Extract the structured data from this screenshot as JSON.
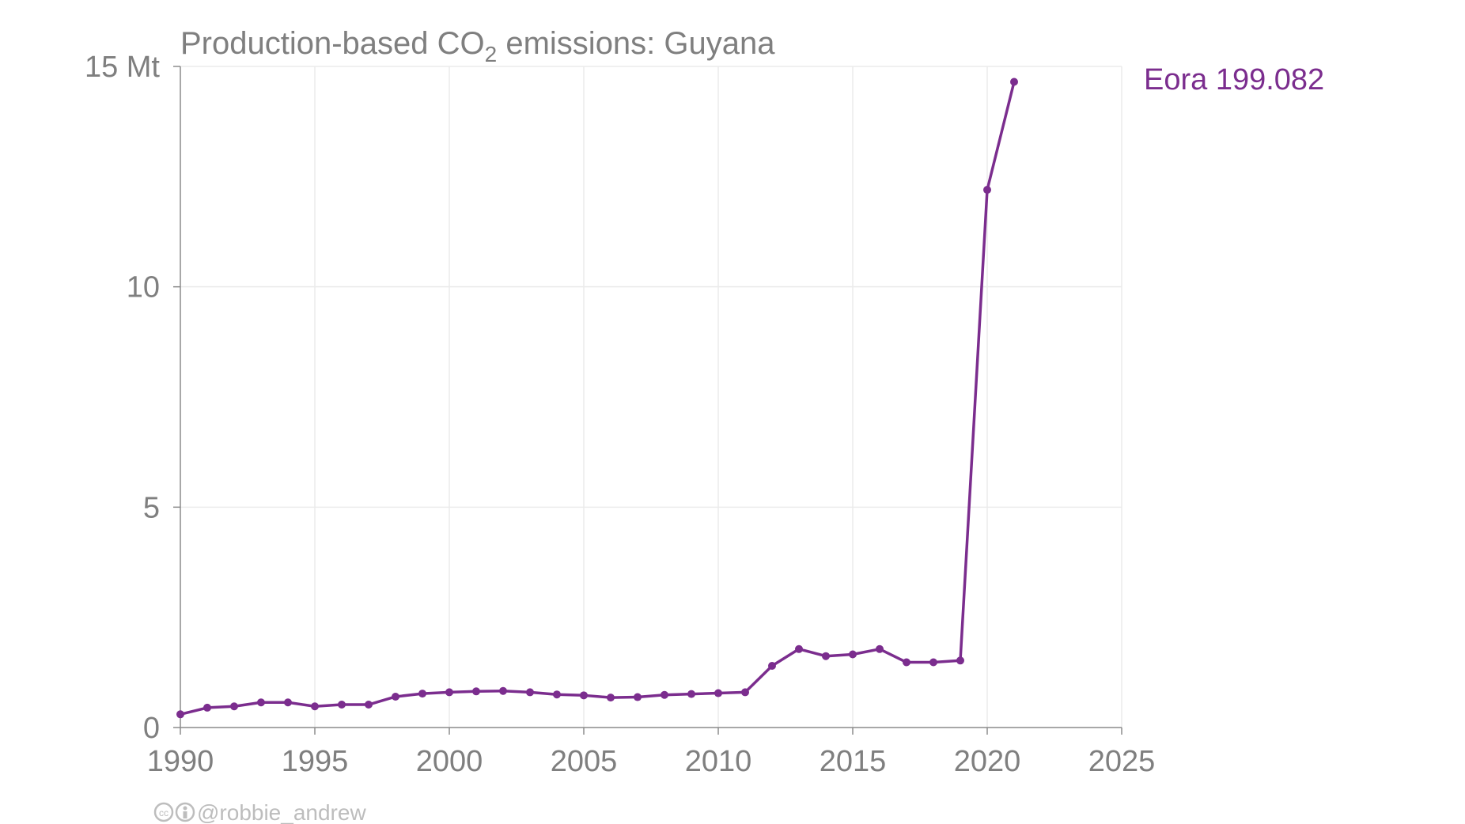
{
  "chart_data": {
    "type": "line",
    "title_main": "Production-based CO",
    "title_sub": "2",
    "title_rest": " emissions: Guyana",
    "y_unit_label": "15 Mt",
    "ylim": [
      0,
      15
    ],
    "xlim": [
      1990,
      2025
    ],
    "y_ticks": [
      0,
      5,
      10,
      15
    ],
    "x_ticks": [
      1990,
      1995,
      2000,
      2005,
      2010,
      2015,
      2020,
      2025
    ],
    "grid": true,
    "series": [
      {
        "name": "Eora 199.082",
        "color": "#7b2d8e",
        "x": [
          1990,
          1991,
          1992,
          1993,
          1994,
          1995,
          1996,
          1997,
          1998,
          1999,
          2000,
          2001,
          2002,
          2003,
          2004,
          2005,
          2006,
          2007,
          2008,
          2009,
          2010,
          2011,
          2012,
          2013,
          2014,
          2015,
          2016,
          2017,
          2018,
          2019,
          2020,
          2021
        ],
        "y": [
          0.3,
          0.45,
          0.48,
          0.57,
          0.57,
          0.48,
          0.52,
          0.52,
          0.7,
          0.77,
          0.8,
          0.82,
          0.83,
          0.8,
          0.75,
          0.73,
          0.68,
          0.69,
          0.74,
          0.76,
          0.78,
          0.8,
          1.4,
          1.78,
          1.62,
          1.66,
          1.78,
          1.48,
          1.48,
          1.52,
          12.2,
          14.65
        ]
      }
    ],
    "credit": "@robbie_andrew",
    "cc_icon": "creative-commons-icon",
    "by_icon": "attribution-icon"
  }
}
